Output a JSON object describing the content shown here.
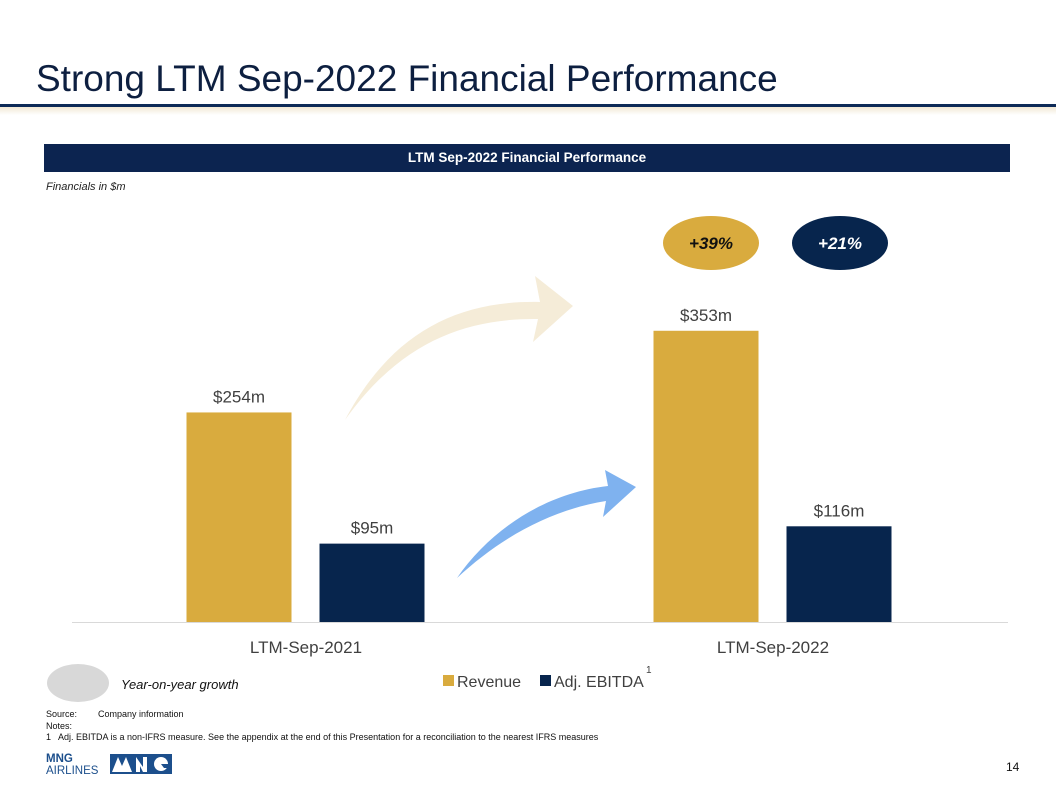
{
  "page": {
    "title": "Strong LTM Sep-2022 Financial Performance",
    "banner": "LTM Sep-2022 Financial Performance",
    "subnote": "Financials in $m",
    "page_number": "14"
  },
  "chart_data": {
    "type": "bar",
    "title": "LTM Sep-2022 Financial Performance",
    "categories": [
      "LTM-Sep-2021",
      "LTM-Sep-2022"
    ],
    "series": [
      {
        "name": "Revenue",
        "values": [
          254,
          353
        ],
        "labels": [
          "$254m",
          "$353m"
        ],
        "color": "#d9ab3e"
      },
      {
        "name": "Adj. EBITDA",
        "values": [
          95,
          116
        ],
        "labels": [
          "$95m",
          "$116m"
        ],
        "color": "#07254d"
      }
    ],
    "ylim": [
      0,
      400
    ],
    "grid": false,
    "legend": "bottom-center",
    "legend_superscript": "1",
    "growth": [
      {
        "series": "Revenue",
        "label": "+39%",
        "color": "#d9ab3e",
        "arrow_color": "#f5ecd8"
      },
      {
        "series": "Adj. EBITDA",
        "label": "+21%",
        "color": "#07254d",
        "arrow_color": "#7fb2ef"
      }
    ]
  },
  "legend_note": {
    "label": "Year-on-year growth",
    "color": "#d8d8d8"
  },
  "source": {
    "source_label": "Source:",
    "source_text": "Company information",
    "notes_label": "Notes:",
    "note_num": "1",
    "note_text": "Adj. EBITDA is a non-IFRS measure. See the appendix at the end of this Presentation for a reconciliation to the nearest IFRS measures"
  },
  "logo": {
    "line1": "MNG",
    "line2": "AIRLINES",
    "color": "#1c4f8c"
  }
}
